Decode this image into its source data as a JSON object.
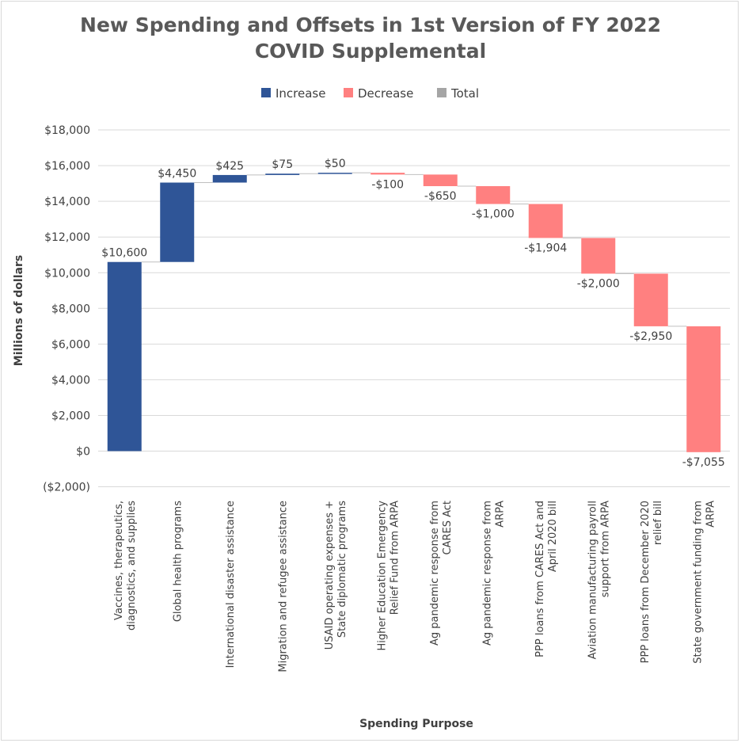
{
  "chart_data": {
    "type": "waterfall",
    "title": [
      "New Spending and Offsets in 1st Version of FY 2022",
      "COVID Supplemental"
    ],
    "xlabel": "Spending Purpose",
    "ylabel": "Millions of dollars",
    "ylim": [
      -2000,
      18000
    ],
    "yticks": [
      -2000,
      0,
      2000,
      4000,
      6000,
      8000,
      10000,
      12000,
      14000,
      16000,
      18000
    ],
    "ytick_labels": [
      "($2,000)",
      "$0",
      "$2,000",
      "$4,000",
      "$6,000",
      "$8,000",
      "$10,000",
      "$12,000",
      "$14,000",
      "$16,000",
      "$18,000"
    ],
    "grid": true,
    "legend_position": "top",
    "legend": [
      {
        "label": "Increase",
        "color": "#2f5597"
      },
      {
        "label": "Decrease",
        "color": "#ff8080"
      },
      {
        "label": "Total",
        "color": "#a5a5a5"
      }
    ],
    "categories": [
      [
        "Vaccines, therapeutics,",
        "diagnostics, and supplies"
      ],
      [
        "Global health programs"
      ],
      [
        "International disaster assistance"
      ],
      [
        "Migration and refugee assistance"
      ],
      [
        "USAID operating expenses +",
        "State diplomatic programs"
      ],
      [
        "Higher Education Emergency",
        "Relief Fund from ARPA"
      ],
      [
        "Ag pandemic response from",
        "CARES Act"
      ],
      [
        "Ag pandemic response from",
        "ARPA"
      ],
      [
        "PPP loans from CARES Act and",
        "April 2020 bill"
      ],
      [
        "Aviation manufacturing payroll",
        "support from ARPA"
      ],
      [
        "PPP loans from December 2020",
        "relief bill"
      ],
      [
        "State government funding from",
        "ARPA"
      ]
    ],
    "values": [
      10600,
      4450,
      425,
      75,
      50,
      -100,
      -650,
      -1000,
      -1904,
      -2000,
      -2950,
      -7055
    ],
    "data_labels": [
      "$10,600",
      "$4,450",
      "$425",
      "$75",
      "$50",
      "-$100",
      "-$650",
      "-$1,000",
      "-$1,904",
      "-$2,000",
      "-$2,950",
      "-$7,055"
    ],
    "colors": {
      "increase": "#2f5597",
      "decrease": "#ff8080",
      "total": "#a5a5a5",
      "grid": "#d9d9d9",
      "connector": "#bfbfbf"
    }
  }
}
